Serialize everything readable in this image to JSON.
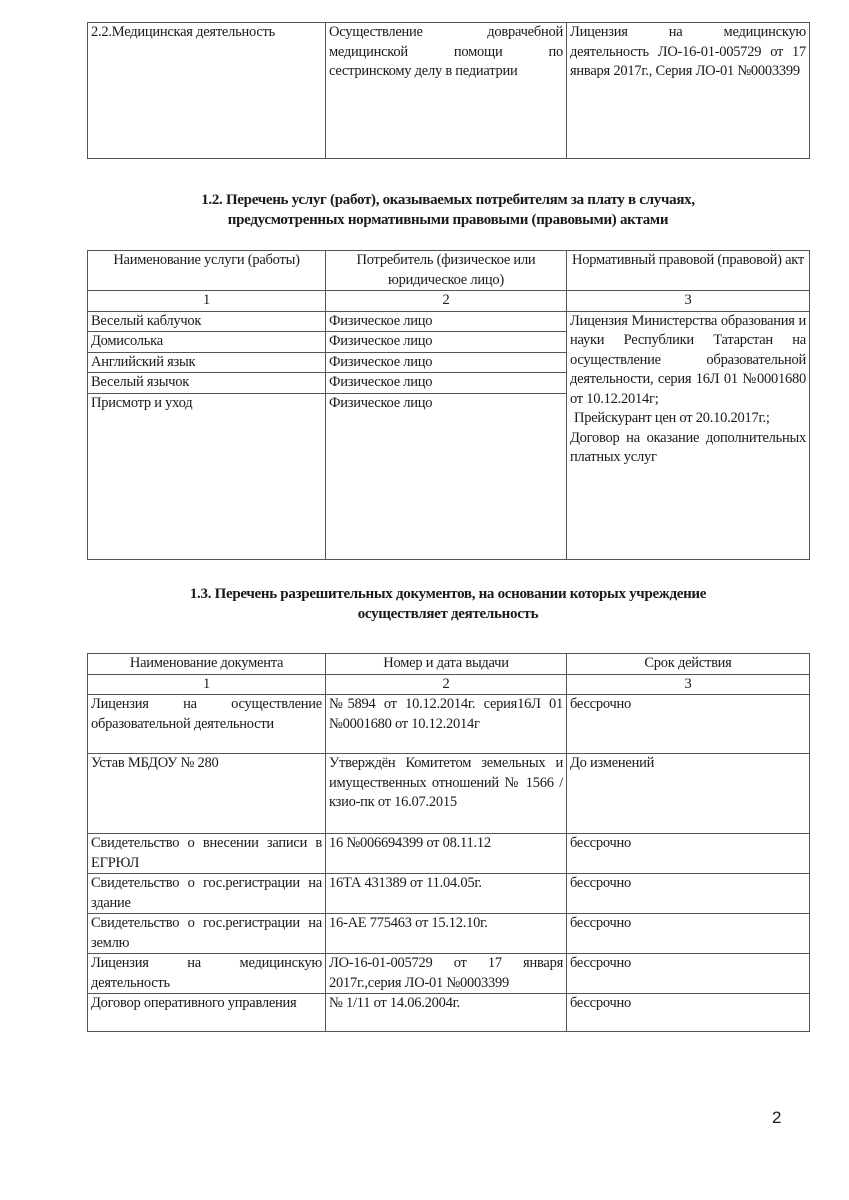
{
  "table_medical": {
    "row": [
      "2.2.Медицинская деятельность",
      "Осуществление доврачебной медицинской помощи по сестринскому делу в педиатрии",
      "Лицензия на медицинскую деятельность ЛО-16-01-005729 от 17 января 2017г., Серия ЛО-01 №0003399"
    ]
  },
  "section_1_2": {
    "title_line1": "1.2. Перечень услуг (работ), оказываемых потребителям за плату в случаях,",
    "title_line2": "предусмотренных нормативными правовыми (правовыми) актами",
    "headers": [
      "Наименование услуги (работы)",
      "Потребитель (физическое или юридическое лицо)",
      "Нормативный правовой (правовой) акт"
    ],
    "numbers": [
      "1",
      "2",
      "3"
    ],
    "rows": [
      {
        "service": "Веселый каблучок",
        "consumer": "Физическое лицо"
      },
      {
        "service": "Домисолька",
        "consumer": "Физическое лицо"
      },
      {
        "service": "Английский язык",
        "consumer": "Физическое лицо"
      },
      {
        "service": "Веселый язычок",
        "consumer": "Физическое лицо"
      },
      {
        "service": "Присмотр и уход",
        "consumer": "Физическое лицо"
      }
    ],
    "legal_act": {
      "license": "Лицензия Министерства образования и науки Республики Татарстан на осуществление образовательной деятельности, серия 16Л 01 №0001680 от 10.12.2014г;",
      "price_list": "Прейскурант цен от 20.10.2017г.;",
      "contract": "Договор на оказание дополнительных платных услуг"
    }
  },
  "section_1_3": {
    "title_line1": "1.3. Перечень разрешительных документов, на основании которых учреждение",
    "title_line2": "осуществляет деятельность",
    "headers": [
      "Наименование документа",
      "Номер и дата выдачи",
      "Срок действия"
    ],
    "numbers": [
      "1",
      "2",
      "3"
    ],
    "rows": [
      {
        "name": "Лицензия на осуществление образовательной деятельности",
        "number": "№5894 от 10.12.2014г. серия16Л 01 №0001680 от 10.12.2014г",
        "term": "бессрочно"
      },
      {
        "name": "Устав МБДОУ № 280",
        "number": "Утверждён Комитетом земельных и имущественных отношений № 1566 /кзио-пк от 16.07.2015",
        "term": "До изменений"
      },
      {
        "name": "Свидетельство о внесении записи в ЕГРЮЛ",
        "number": "16 №006694399 от 08.11.12",
        "term": "бессрочно"
      },
      {
        "name": "Свидетельство о гос.регистрации на здание",
        "number": "16ТА 431389 от 11.04.05г.",
        "term": "бессрочно"
      },
      {
        "name": "Свидетельство о гос.регистрации на землю",
        "number": "16-АЕ 775463 от 15.12.10г.",
        "term": "бессрочно"
      },
      {
        "name": "Лицензия на медицинскую деятельность",
        "number": "ЛО-16-01-005729 от 17 января 2017г.,серия ЛО-01 №0003399",
        "term": "бессрочно"
      },
      {
        "name": "Договор оперативного управления",
        "number": "№ 1/11 от 14.06.2004г.",
        "term": "бессрочно"
      }
    ]
  },
  "page_number": "2"
}
